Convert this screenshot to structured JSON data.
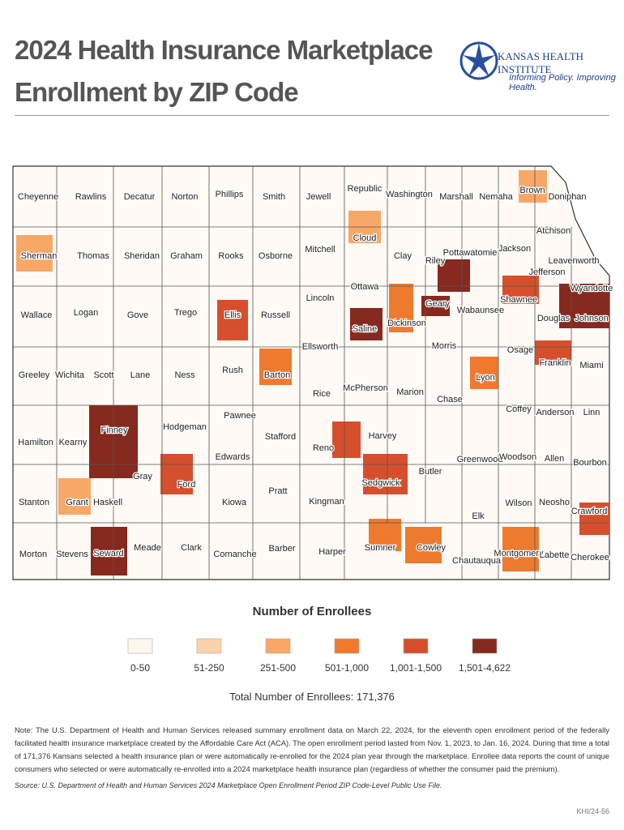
{
  "header": {
    "title_line1": "2024 Health Insurance Marketplace",
    "title_line2": "Enrollment by ZIP Code",
    "org_name": "KANSAS HEALTH INSTITUTE",
    "org_tagline": "Informing Policy. Improving Health."
  },
  "map": {
    "counties": [
      "Cheyenne",
      "Rawlins",
      "Decatur",
      "Norton",
      "Phillips",
      "Smith",
      "Jewell",
      "Republic",
      "Washington",
      "Marshall",
      "Nemaha",
      "Brown",
      "Doniphan",
      "Atchison",
      "Sherman",
      "Thomas",
      "Sheridan",
      "Graham",
      "Rooks",
      "Osborne",
      "Mitchell",
      "Cloud",
      "Clay",
      "Riley",
      "Pottawatomie",
      "Jackson",
      "Jefferson",
      "Leavenworth",
      "Wyandotte",
      "Lincoln",
      "Ottawa",
      "Geary",
      "Wabaunsee",
      "Shawnee",
      "Douglas",
      "Johnson",
      "Wallace",
      "Logan",
      "Gove",
      "Trego",
      "Ellis",
      "Russell",
      "Saline",
      "Dickinson",
      "Ellsworth",
      "Morris",
      "Osage",
      "Franklin",
      "Miami",
      "Greeley",
      "Wichita",
      "Scott",
      "Lane",
      "Ness",
      "Rush",
      "Barton",
      "Rice",
      "McPherson",
      "Marion",
      "Chase",
      "Lyon",
      "Coffey",
      "Anderson",
      "Linn",
      "Pawnee",
      "Hodgeman",
      "Finney",
      "Stafford",
      "Harvey",
      "Hamilton",
      "Kearny",
      "Edwards",
      "Reno",
      "Greenwood",
      "Woodson",
      "Allen",
      "Bourbon",
      "Gray",
      "Ford",
      "Butler",
      "Sedgwick",
      "Pratt",
      "Stanton",
      "Grant",
      "Haskell",
      "Kiowa",
      "Kingman",
      "Wilson",
      "Neosho",
      "Crawford",
      "Elk",
      "Meade",
      "Clark",
      "Barber",
      "Sumner",
      "Cowley",
      "Morton",
      "Stevens",
      "Seward",
      "Comanche",
      "Harper",
      "Chautauqua",
      "Montgomery",
      "Labette",
      "Cherokee"
    ]
  },
  "legend": {
    "title": "Number of Enrollees",
    "items": [
      {
        "label": "0-50",
        "color": "#fff6ee"
      },
      {
        "label": "51-250",
        "color": "#fcd2aa"
      },
      {
        "label": "251-500",
        "color": "#f8a866"
      },
      {
        "label": "501-1,000",
        "color": "#ee7a2e"
      },
      {
        "label": "1,001-1,500",
        "color": "#d64f2c"
      },
      {
        "label": "1,501-4,622",
        "color": "#86291f"
      }
    ],
    "total": "Total Number of Enrollees: 171,376"
  },
  "note": "Note: The U.S. Department of Health and Human Services released summary enrollment data on March 22, 2024, for the eleventh open enrollment period of the federally facilitated health insurance marketplace created by the Affordable Care Act (ACA). The open enrollment period lasted from Nov. 1, 2023, to Jan. 16, 2024. During that time a total of 171,376 Kansans selected a health insurance plan or were automatically re-enrolled for the 2024 plan year through the marketplace. Enrollee data reports the count of unique consumers who selected or were automatically re-enrolled into a 2024 marketplace health insurance plan (regardless of whether the consumer paid the premium).",
  "source": "Source: U.S. Department of Health and Human Services 2024 Marketplace Open Enrollment Period ZIP Code-Level Public Use File.",
  "doc_id": "KHI/24-56"
}
